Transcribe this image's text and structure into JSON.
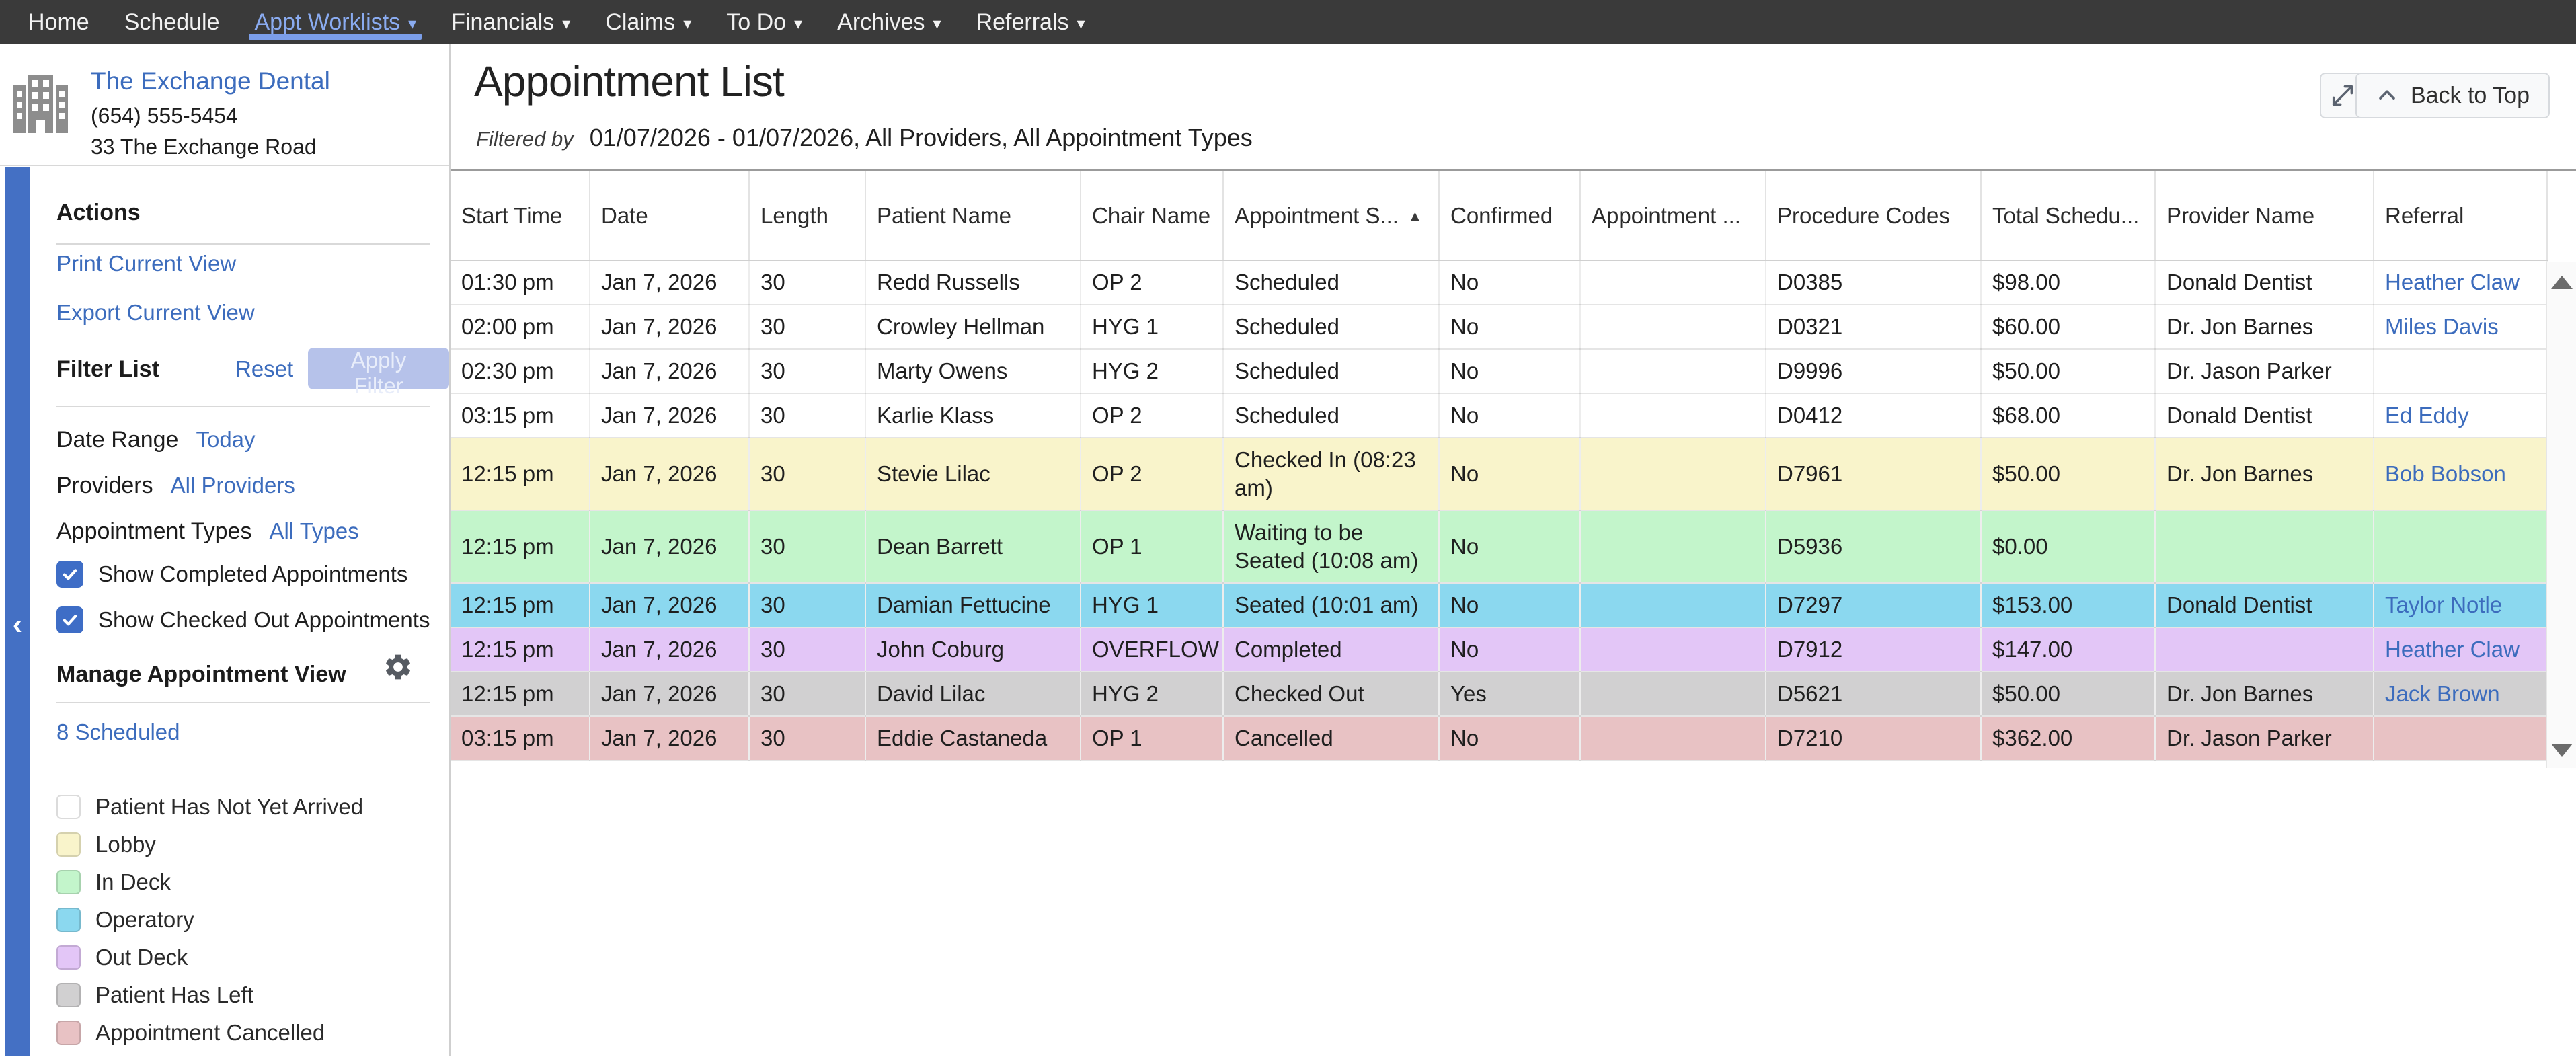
{
  "nav": {
    "items": [
      {
        "label": "Home",
        "caret": false,
        "active": false
      },
      {
        "label": "Schedule",
        "caret": false,
        "active": false
      },
      {
        "label": "Appt Worklists",
        "caret": true,
        "active": true
      },
      {
        "label": "Financials",
        "caret": true,
        "active": false
      },
      {
        "label": "Claims",
        "caret": true,
        "active": false
      },
      {
        "label": "To Do",
        "caret": true,
        "active": false
      },
      {
        "label": "Archives",
        "caret": true,
        "active": false
      },
      {
        "label": "Referrals",
        "caret": true,
        "active": false
      }
    ]
  },
  "practice": {
    "name": "The Exchange Dental",
    "phone": "(654) 555-5454",
    "address": "33 The Exchange Road"
  },
  "sidebar": {
    "actions_title": "Actions",
    "action_links": [
      "Print Current View",
      "Export Current View"
    ],
    "filter_title": "Filter List",
    "reset_label": "Reset",
    "apply_label": "Apply Filter",
    "filters": [
      {
        "label": "Date Range",
        "value": "Today"
      },
      {
        "label": "Providers",
        "value": "All Providers"
      },
      {
        "label": "Appointment Types",
        "value": "All Types"
      }
    ],
    "checkboxes": [
      {
        "label": "Show Completed Appointments",
        "checked": true
      },
      {
        "label": "Show Checked Out Appointments",
        "checked": true
      }
    ],
    "manage_title": "Manage Appointment View",
    "scheduled_link": "8 Scheduled",
    "legend": [
      {
        "label": "Patient Has Not Yet Arrived",
        "key": "not_arrived"
      },
      {
        "label": "Lobby",
        "key": "lobby"
      },
      {
        "label": "In Deck",
        "key": "in_deck"
      },
      {
        "label": "Operatory",
        "key": "operatory"
      },
      {
        "label": "Out Deck",
        "key": "out_deck"
      },
      {
        "label": "Patient Has Left",
        "key": "patient_left"
      },
      {
        "label": "Appointment Cancelled",
        "key": "cancelled"
      }
    ]
  },
  "main": {
    "title": "Appointment List",
    "filtered_label": "Filtered by",
    "filtered_value": "01/07/2026 - 01/07/2026, All Providers, All Appointment Types",
    "back_to_top": "Back to Top"
  },
  "table": {
    "columns": [
      {
        "label": "Start Time"
      },
      {
        "label": "Date"
      },
      {
        "label": "Length"
      },
      {
        "label": "Patient Name"
      },
      {
        "label": "Chair Name"
      },
      {
        "label": "Appointment S...",
        "sort": "asc"
      },
      {
        "label": "Confirmed"
      },
      {
        "label": "Appointment ..."
      },
      {
        "label": "Procedure Codes"
      },
      {
        "label": "Total Schedu..."
      },
      {
        "label": "Provider Name"
      },
      {
        "label": "Referral"
      }
    ],
    "rows": [
      {
        "start_time": "01:30 pm",
        "date": "Jan 7, 2026",
        "length": "30",
        "patient": "Redd Russells",
        "chair": "OP 2",
        "status": "Scheduled",
        "confirmed": "No",
        "appt_extra": "",
        "procedure_codes": "D0385",
        "total": "$98.00",
        "provider": "Donald Dentist",
        "referral": "Heather Claw",
        "state": "not_arrived"
      },
      {
        "start_time": "02:00 pm",
        "date": "Jan 7, 2026",
        "length": "30",
        "patient": "Crowley Hellman",
        "chair": "HYG 1",
        "status": "Scheduled",
        "confirmed": "No",
        "appt_extra": "",
        "procedure_codes": "D0321",
        "total": "$60.00",
        "provider": "Dr. Jon Barnes",
        "referral": "Miles Davis",
        "state": "not_arrived"
      },
      {
        "start_time": "02:30 pm",
        "date": "Jan 7, 2026",
        "length": "30",
        "patient": "Marty Owens",
        "chair": "HYG 2",
        "status": "Scheduled",
        "confirmed": "No",
        "appt_extra": "",
        "procedure_codes": "D9996",
        "total": "$50.00",
        "provider": "Dr. Jason Parker",
        "referral": "",
        "state": "not_arrived"
      },
      {
        "start_time": "03:15 pm",
        "date": "Jan 7, 2026",
        "length": "30",
        "patient": "Karlie Klass",
        "chair": "OP 2",
        "status": "Scheduled",
        "confirmed": "No",
        "appt_extra": "",
        "procedure_codes": "D0412",
        "total": "$68.00",
        "provider": "Donald Dentist",
        "referral": "Ed Eddy",
        "state": "not_arrived"
      },
      {
        "start_time": "12:15 pm",
        "date": "Jan 7, 2026",
        "length": "30",
        "patient": "Stevie Lilac",
        "chair": "OP 2",
        "status": "Checked In (08:23 am)",
        "confirmed": "No",
        "appt_extra": "",
        "procedure_codes": "D7961",
        "total": "$50.00",
        "provider": "Dr. Jon Barnes",
        "referral": "Bob Bobson",
        "state": "lobby"
      },
      {
        "start_time": "12:15 pm",
        "date": "Jan 7, 2026",
        "length": "30",
        "patient": "Dean Barrett",
        "chair": "OP 1",
        "status": "Waiting to be Seated (10:08 am)",
        "confirmed": "No",
        "appt_extra": "",
        "procedure_codes": "D5936",
        "total": "$0.00",
        "provider": "",
        "referral": "",
        "state": "in_deck"
      },
      {
        "start_time": "12:15 pm",
        "date": "Jan 7, 2026",
        "length": "30",
        "patient": "Damian Fettucine",
        "chair": "HYG 1",
        "status": "Seated (10:01 am)",
        "confirmed": "No",
        "appt_extra": "",
        "procedure_codes": "D7297",
        "total": "$153.00",
        "provider": "Donald Dentist",
        "referral": "Taylor Notle",
        "state": "operatory"
      },
      {
        "start_time": "12:15 pm",
        "date": "Jan 7, 2026",
        "length": "30",
        "patient": "John Coburg",
        "chair": "OVERFLOW",
        "status": "Completed",
        "confirmed": "No",
        "appt_extra": "",
        "procedure_codes": "D7912",
        "total": "$147.00",
        "provider": "",
        "referral": "Heather Claw",
        "state": "out_deck"
      },
      {
        "start_time": "12:15 pm",
        "date": "Jan 7, 2026",
        "length": "30",
        "patient": "David Lilac",
        "chair": "HYG 2",
        "status": "Checked Out",
        "confirmed": "Yes",
        "appt_extra": "",
        "procedure_codes": "D5621",
        "total": "$50.00",
        "provider": "Dr. Jon Barnes",
        "referral": "Jack Brown",
        "state": "patient_left"
      },
      {
        "start_time": "03:15 pm",
        "date": "Jan 7, 2026",
        "length": "30",
        "patient": "Eddie Castaneda",
        "chair": "OP 1",
        "status": "Cancelled",
        "confirmed": "No",
        "appt_extra": "",
        "procedure_codes": "D7210",
        "total": "$362.00",
        "provider": "Dr. Jason Parker",
        "referral": "",
        "state": "cancelled"
      }
    ]
  },
  "colors": {
    "rail": "#4470c4",
    "link": "#3c6cbd",
    "nav_active": "#8aabf0",
    "nav_underline": "#7b9ee9",
    "apply_bg": "#b6c2ea",
    "apply_text": "#e8edfa",
    "checkbox": "#3e6dc6",
    "status_colors": {
      "not_arrived": "#ffffff",
      "lobby": "#f9f4cb",
      "in_deck": "#c3f5cb",
      "operatory": "#8bd8ef",
      "out_deck": "#e3c6f7",
      "patient_left": "#d1d0d1",
      "cancelled": "#e8c2c4"
    }
  }
}
